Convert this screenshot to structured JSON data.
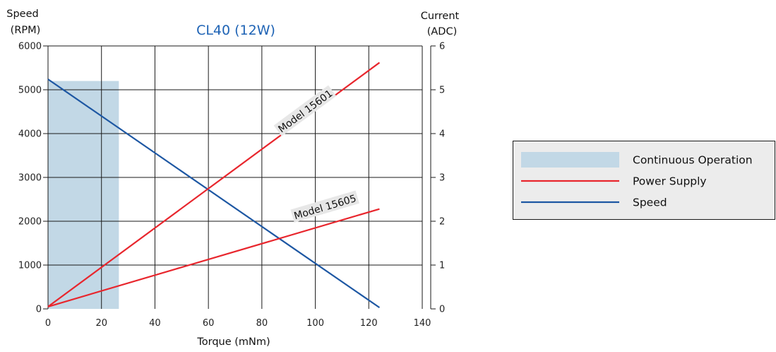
{
  "chart_data": {
    "type": "line",
    "title": "CL40 (12W)",
    "xlabel": "Torque (mNm)",
    "ylabel_lines": [
      "Speed",
      "(RPM)"
    ],
    "y2label_lines": [
      "Current",
      "(ADC)"
    ],
    "xlim": [
      0,
      140
    ],
    "ylim": [
      0,
      6000
    ],
    "y2lim": [
      0,
      6
    ],
    "xticks": [
      0,
      20,
      40,
      60,
      80,
      100,
      120,
      140
    ],
    "yticks": [
      0,
      1000,
      2000,
      3000,
      4000,
      5000,
      6000
    ],
    "y2ticks": [
      0,
      1,
      2,
      3,
      4,
      5,
      6
    ],
    "grid": true,
    "legend_position": "right",
    "continuous_operation": {
      "name": "Continuous Operation",
      "x": [
        0,
        26.5
      ],
      "y": [
        0,
        5200
      ],
      "color": "#c2d8e6"
    },
    "series": [
      {
        "name": "Speed",
        "axis": "left",
        "color": "#1d57a3",
        "x": [
          0,
          124
        ],
        "y": [
          5240,
          30
        ]
      },
      {
        "name": "Power Supply",
        "axis": "right",
        "color": "#e8262d",
        "label": "Model 15601",
        "x": [
          0,
          124
        ],
        "y": [
          0.05,
          5.62
        ]
      },
      {
        "name": "Power Supply",
        "axis": "right",
        "color": "#e8262d",
        "label": "Model 15605",
        "x": [
          0,
          124
        ],
        "y": [
          0.05,
          2.28
        ]
      }
    ],
    "annotations": [
      {
        "text": "Model 15601",
        "x": 97,
        "y2": 4.45
      },
      {
        "text": "Model 15605",
        "x": 104,
        "y2": 2.25
      }
    ],
    "legend": [
      {
        "label": "Continuous Operation",
        "kind": "swatch",
        "color": "#c2d8e6"
      },
      {
        "label": "Power Supply",
        "kind": "line",
        "color": "#e8262d"
      },
      {
        "label": "Speed",
        "kind": "line",
        "color": "#1d57a3"
      }
    ],
    "title_color": "#1e63b5"
  }
}
